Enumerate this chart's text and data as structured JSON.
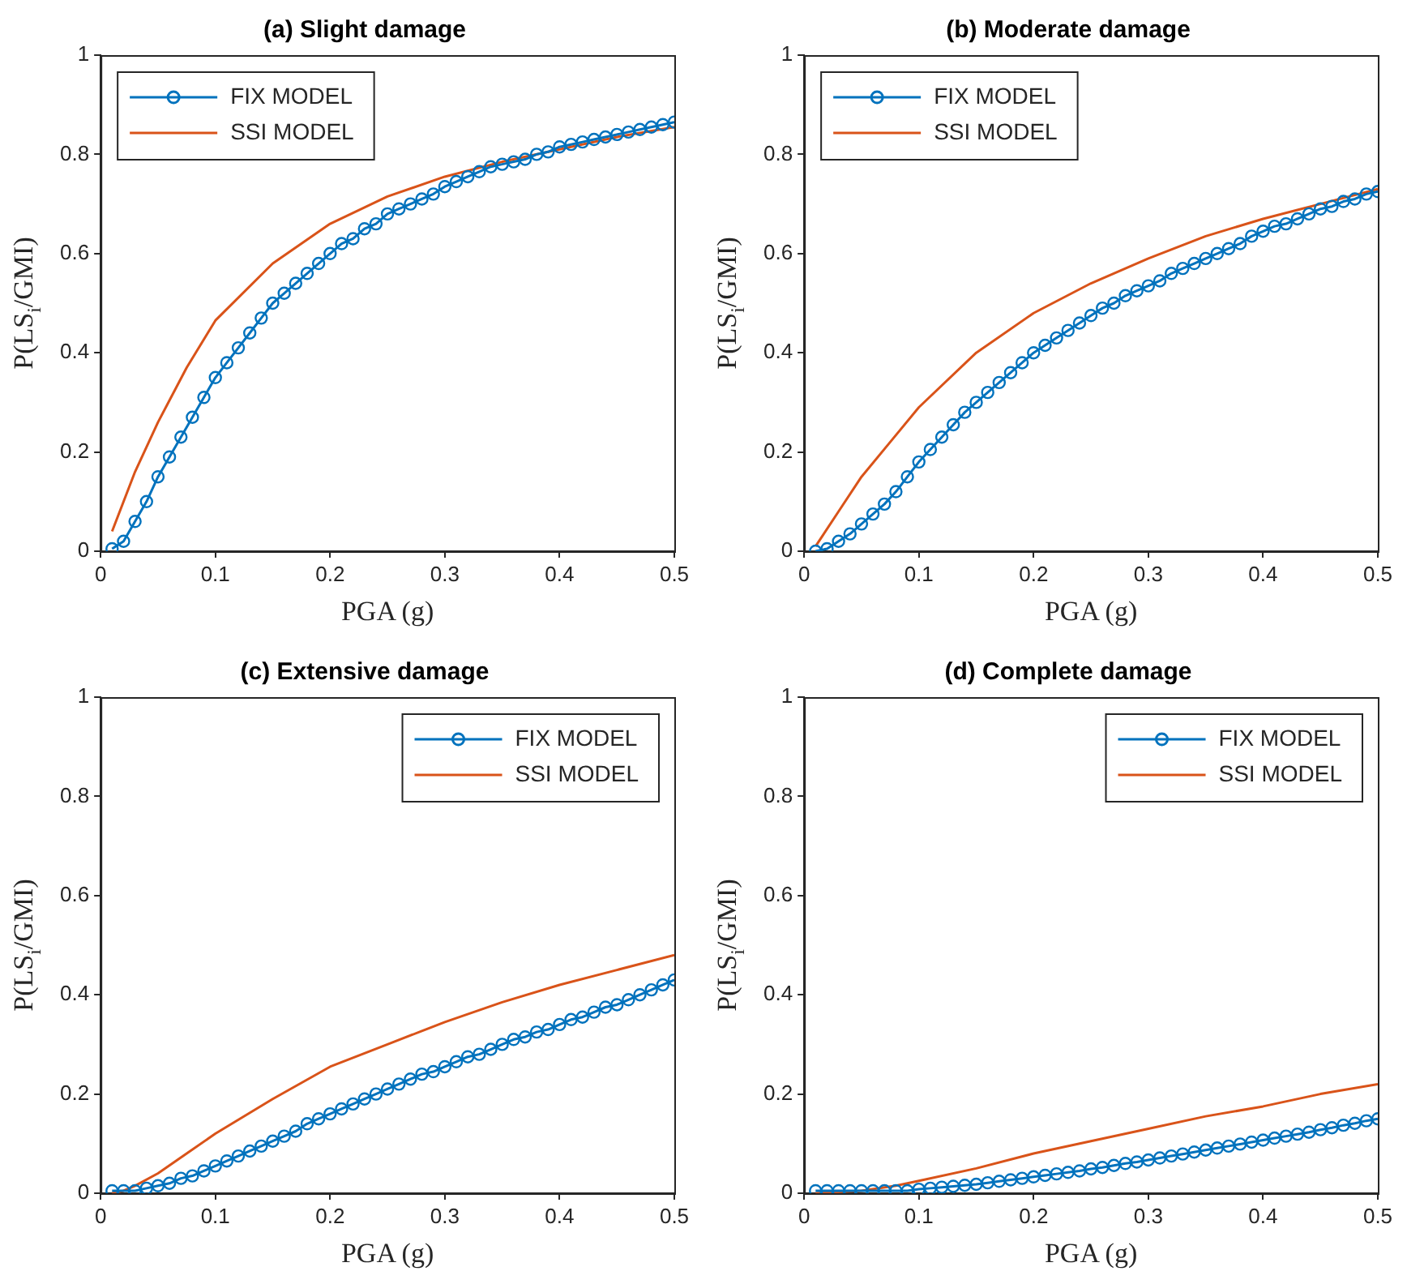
{
  "chart_data": [
    {
      "type": "line",
      "title": "(a) Slight damage",
      "xlabel": "PGA (g)",
      "ylabel": "P(LS$_{i}$/GMI)",
      "xlim": [
        0,
        0.5
      ],
      "ylim": [
        0,
        1
      ],
      "xticks": [
        0,
        0.1,
        0.2,
        0.3,
        0.4,
        0.5
      ],
      "yticks": [
        0,
        0.2,
        0.4,
        0.6,
        0.8,
        1
      ],
      "legend": "top left",
      "series": [
        {
          "name": "FIX MODEL",
          "color": "#0072bd",
          "marker": "circle",
          "x": [
            0.01,
            0.02,
            0.03,
            0.04,
            0.05,
            0.06,
            0.07,
            0.08,
            0.09,
            0.1,
            0.11,
            0.12,
            0.13,
            0.14,
            0.15,
            0.16,
            0.17,
            0.18,
            0.19,
            0.2,
            0.21,
            0.22,
            0.23,
            0.24,
            0.25,
            0.26,
            0.27,
            0.28,
            0.29,
            0.3,
            0.31,
            0.32,
            0.33,
            0.34,
            0.35,
            0.36,
            0.37,
            0.38,
            0.39,
            0.4,
            0.41,
            0.42,
            0.43,
            0.44,
            0.45,
            0.46,
            0.47,
            0.48,
            0.49,
            0.5
          ],
          "values": [
            0.005,
            0.02,
            0.06,
            0.1,
            0.15,
            0.19,
            0.23,
            0.27,
            0.31,
            0.35,
            0.38,
            0.41,
            0.44,
            0.47,
            0.5,
            0.52,
            0.54,
            0.56,
            0.58,
            0.6,
            0.62,
            0.63,
            0.65,
            0.66,
            0.68,
            0.69,
            0.7,
            0.71,
            0.72,
            0.735,
            0.745,
            0.755,
            0.765,
            0.775,
            0.78,
            0.785,
            0.79,
            0.8,
            0.805,
            0.815,
            0.82,
            0.825,
            0.83,
            0.835,
            0.84,
            0.845,
            0.85,
            0.855,
            0.86,
            0.865
          ]
        },
        {
          "name": "SSI MODEL",
          "color": "#d95319",
          "marker": "none",
          "x": [
            0.01,
            0.02,
            0.03,
            0.05,
            0.075,
            0.1,
            0.15,
            0.2,
            0.25,
            0.3,
            0.35,
            0.4,
            0.45,
            0.5
          ],
          "values": [
            0.04,
            0.1,
            0.16,
            0.26,
            0.37,
            0.465,
            0.58,
            0.66,
            0.715,
            0.755,
            0.785,
            0.81,
            0.835,
            0.855
          ]
        }
      ]
    },
    {
      "type": "line",
      "title": "(b) Moderate damage",
      "xlabel": "PGA (g)",
      "ylabel": "P(LS$_{i}$/GMI)",
      "xlim": [
        0,
        0.5
      ],
      "ylim": [
        0,
        1
      ],
      "xticks": [
        0,
        0.1,
        0.2,
        0.3,
        0.4,
        0.5
      ],
      "yticks": [
        0,
        0.2,
        0.4,
        0.6,
        0.8,
        1
      ],
      "legend": "top left",
      "series": [
        {
          "name": "FIX MODEL",
          "color": "#0072bd",
          "marker": "circle",
          "x": [
            0.01,
            0.02,
            0.03,
            0.04,
            0.05,
            0.06,
            0.07,
            0.08,
            0.09,
            0.1,
            0.11,
            0.12,
            0.13,
            0.14,
            0.15,
            0.16,
            0.17,
            0.18,
            0.19,
            0.2,
            0.21,
            0.22,
            0.23,
            0.24,
            0.25,
            0.26,
            0.27,
            0.28,
            0.29,
            0.3,
            0.31,
            0.32,
            0.33,
            0.34,
            0.35,
            0.36,
            0.37,
            0.38,
            0.39,
            0.4,
            0.41,
            0.42,
            0.43,
            0.44,
            0.45,
            0.46,
            0.47,
            0.48,
            0.49,
            0.5
          ],
          "values": [
            0,
            0.005,
            0.02,
            0.035,
            0.055,
            0.075,
            0.095,
            0.12,
            0.15,
            0.18,
            0.205,
            0.23,
            0.255,
            0.28,
            0.3,
            0.32,
            0.34,
            0.36,
            0.38,
            0.4,
            0.415,
            0.43,
            0.445,
            0.46,
            0.475,
            0.49,
            0.5,
            0.515,
            0.525,
            0.535,
            0.545,
            0.56,
            0.57,
            0.58,
            0.59,
            0.6,
            0.61,
            0.62,
            0.635,
            0.645,
            0.655,
            0.66,
            0.67,
            0.68,
            0.69,
            0.695,
            0.705,
            0.71,
            0.72,
            0.725
          ]
        },
        {
          "name": "SSI MODEL",
          "color": "#d95319",
          "marker": "none",
          "x": [
            0.01,
            0.03,
            0.05,
            0.075,
            0.1,
            0.15,
            0.2,
            0.25,
            0.3,
            0.35,
            0.4,
            0.45,
            0.5
          ],
          "values": [
            0.01,
            0.08,
            0.15,
            0.22,
            0.29,
            0.4,
            0.48,
            0.54,
            0.59,
            0.635,
            0.67,
            0.7,
            0.73
          ]
        }
      ]
    },
    {
      "type": "line",
      "title": "(c) Extensive damage",
      "xlabel": "PGA (g)",
      "ylabel": "P(LS$_{i}$/GMI)",
      "xlim": [
        0,
        0.5
      ],
      "ylim": [
        0,
        1
      ],
      "xticks": [
        0,
        0.1,
        0.2,
        0.3,
        0.4,
        0.5
      ],
      "yticks": [
        0,
        0.2,
        0.4,
        0.6,
        0.8,
        1
      ],
      "legend": "top right",
      "series": [
        {
          "name": "FIX MODEL",
          "color": "#0072bd",
          "marker": "circle",
          "x": [
            0.01,
            0.02,
            0.03,
            0.04,
            0.05,
            0.06,
            0.07,
            0.08,
            0.09,
            0.1,
            0.11,
            0.12,
            0.13,
            0.14,
            0.15,
            0.16,
            0.17,
            0.18,
            0.19,
            0.2,
            0.21,
            0.22,
            0.23,
            0.24,
            0.25,
            0.26,
            0.27,
            0.28,
            0.29,
            0.3,
            0.31,
            0.32,
            0.33,
            0.34,
            0.35,
            0.36,
            0.37,
            0.38,
            0.39,
            0.4,
            0.41,
            0.42,
            0.43,
            0.44,
            0.45,
            0.46,
            0.47,
            0.48,
            0.49,
            0.5
          ],
          "values": [
            0.005,
            0.005,
            0.005,
            0.01,
            0.015,
            0.02,
            0.03,
            0.035,
            0.045,
            0.055,
            0.065,
            0.075,
            0.085,
            0.095,
            0.105,
            0.115,
            0.125,
            0.14,
            0.15,
            0.16,
            0.17,
            0.18,
            0.19,
            0.2,
            0.21,
            0.22,
            0.23,
            0.24,
            0.245,
            0.255,
            0.265,
            0.275,
            0.28,
            0.29,
            0.3,
            0.31,
            0.315,
            0.325,
            0.33,
            0.34,
            0.35,
            0.355,
            0.365,
            0.375,
            0.38,
            0.39,
            0.4,
            0.41,
            0.42,
            0.43
          ]
        },
        {
          "name": "SSI MODEL",
          "color": "#d95319",
          "marker": "none",
          "x": [
            0.01,
            0.02,
            0.03,
            0.05,
            0.075,
            0.1,
            0.15,
            0.2,
            0.25,
            0.3,
            0.35,
            0.4,
            0.45,
            0.5
          ],
          "values": [
            0,
            0.005,
            0.015,
            0.04,
            0.08,
            0.12,
            0.19,
            0.255,
            0.3,
            0.345,
            0.385,
            0.42,
            0.45,
            0.48
          ]
        }
      ]
    },
    {
      "type": "line",
      "title": "(d) Complete damage",
      "xlabel": "PGA (g)",
      "ylabel": "P(LS$_{i}$/GMI)",
      "xlim": [
        0,
        0.5
      ],
      "ylim": [
        0,
        1
      ],
      "xticks": [
        0,
        0.1,
        0.2,
        0.3,
        0.4,
        0.5
      ],
      "yticks": [
        0,
        0.2,
        0.4,
        0.6,
        0.8,
        1
      ],
      "legend": "top right",
      "series": [
        {
          "name": "FIX MODEL",
          "color": "#0072bd",
          "marker": "circle",
          "x": [
            0.01,
            0.02,
            0.03,
            0.04,
            0.05,
            0.06,
            0.07,
            0.08,
            0.09,
            0.1,
            0.11,
            0.12,
            0.13,
            0.14,
            0.15,
            0.16,
            0.17,
            0.18,
            0.19,
            0.2,
            0.21,
            0.22,
            0.23,
            0.24,
            0.25,
            0.26,
            0.27,
            0.28,
            0.29,
            0.3,
            0.31,
            0.32,
            0.33,
            0.34,
            0.35,
            0.36,
            0.37,
            0.38,
            0.39,
            0.4,
            0.41,
            0.42,
            0.43,
            0.44,
            0.45,
            0.46,
            0.47,
            0.48,
            0.49,
            0.5
          ],
          "values": [
            0.005,
            0.005,
            0.005,
            0.005,
            0.005,
            0.005,
            0.005,
            0.005,
            0.005,
            0.008,
            0.01,
            0.012,
            0.014,
            0.016,
            0.018,
            0.021,
            0.024,
            0.027,
            0.03,
            0.033,
            0.036,
            0.039,
            0.042,
            0.045,
            0.049,
            0.052,
            0.056,
            0.06,
            0.063,
            0.067,
            0.071,
            0.075,
            0.079,
            0.083,
            0.087,
            0.091,
            0.095,
            0.099,
            0.103,
            0.107,
            0.111,
            0.115,
            0.119,
            0.123,
            0.128,
            0.132,
            0.137,
            0.141,
            0.146,
            0.15
          ]
        },
        {
          "name": "SSI MODEL",
          "color": "#d95319",
          "marker": "none",
          "x": [
            0.01,
            0.05,
            0.08,
            0.1,
            0.15,
            0.2,
            0.25,
            0.3,
            0.35,
            0.4,
            0.45,
            0.5
          ],
          "values": [
            0,
            0.005,
            0.015,
            0.025,
            0.05,
            0.08,
            0.105,
            0.13,
            0.155,
            0.175,
            0.2,
            0.22
          ]
        }
      ]
    }
  ]
}
